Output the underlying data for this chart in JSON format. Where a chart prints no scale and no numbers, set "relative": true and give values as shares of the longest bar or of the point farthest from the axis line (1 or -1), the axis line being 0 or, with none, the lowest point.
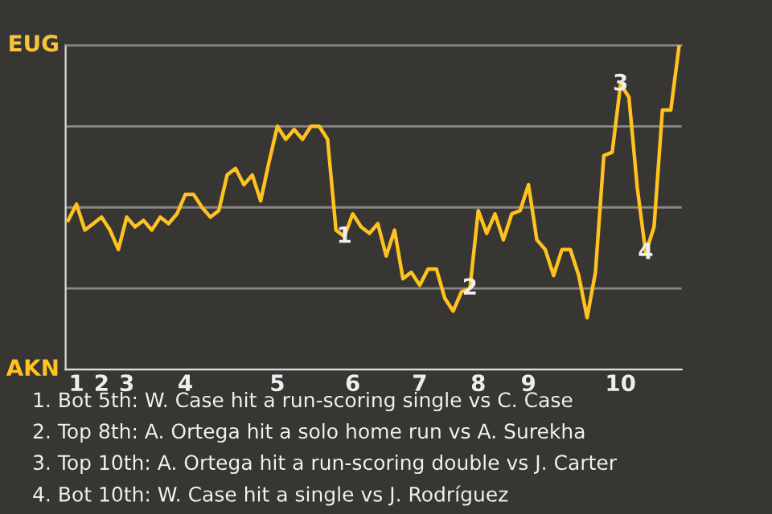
{
  "chart_data": {
    "type": "line",
    "relative": true,
    "categories": [
      null,
      "1",
      null,
      null,
      "2",
      null,
      null,
      "3",
      null,
      null,
      null,
      null,
      null,
      null,
      "4",
      null,
      null,
      null,
      null,
      null,
      null,
      null,
      null,
      null,
      null,
      "5",
      null,
      null,
      null,
      null,
      null,
      null,
      null,
      null,
      "6",
      null,
      null,
      null,
      null,
      null,
      null,
      null,
      "7",
      null,
      null,
      null,
      null,
      null,
      null,
      "8",
      null,
      null,
      null,
      null,
      null,
      "9",
      null,
      null,
      null,
      null,
      null,
      null,
      null,
      null,
      null,
      null,
      "10",
      null,
      null,
      null,
      null,
      null,
      null,
      null
    ],
    "series": [
      {
        "color": "#ffc21f",
        "values": [
          0.46,
          0.51,
          0.43,
          0.45,
          0.47,
          0.43,
          0.37,
          0.47,
          0.44,
          0.46,
          0.43,
          0.47,
          0.45,
          0.48,
          0.54,
          0.54,
          0.5,
          0.47,
          0.49,
          0.6,
          0.62,
          0.57,
          0.6,
          0.52,
          0.64,
          0.75,
          0.71,
          0.74,
          0.71,
          0.75,
          0.75,
          0.71,
          0.43,
          0.41,
          0.48,
          0.44,
          0.42,
          0.45,
          0.35,
          0.43,
          0.28,
          0.3,
          0.26,
          0.31,
          0.31,
          0.22,
          0.18,
          0.24,
          0.25,
          0.49,
          0.42,
          0.48,
          0.4,
          0.48,
          0.49,
          0.57,
          0.4,
          0.37,
          0.29,
          0.37,
          0.37,
          0.29,
          0.16,
          0.3,
          0.66,
          0.67,
          0.88,
          0.84,
          0.56,
          0.36,
          0.44,
          0.8,
          0.8,
          1
        ]
      }
    ],
    "grid": "y",
    "legend": false,
    "marker": "none",
    "line_style": "solid",
    "annotations": [
      "EUG",
      "AKN",
      {
        "text": "1",
        "y": 0.41
      },
      {
        "text": "2",
        "y": 0.25
      },
      {
        "text": "3",
        "y": 0.88
      },
      {
        "text": "4",
        "y": 0.36
      },
      "1. Bot 5th: W. Case hit a run-scoring single vs C. Case",
      "2. Top 8th: A. Ortega hit a solo home run vs A. Surekha",
      "3. Top 10th: A. Ortega hit a run-scoring double vs J. Carter",
      "4. Bot 10th: W. Case hit a single vs J. Rodríguez"
    ]
  }
}
